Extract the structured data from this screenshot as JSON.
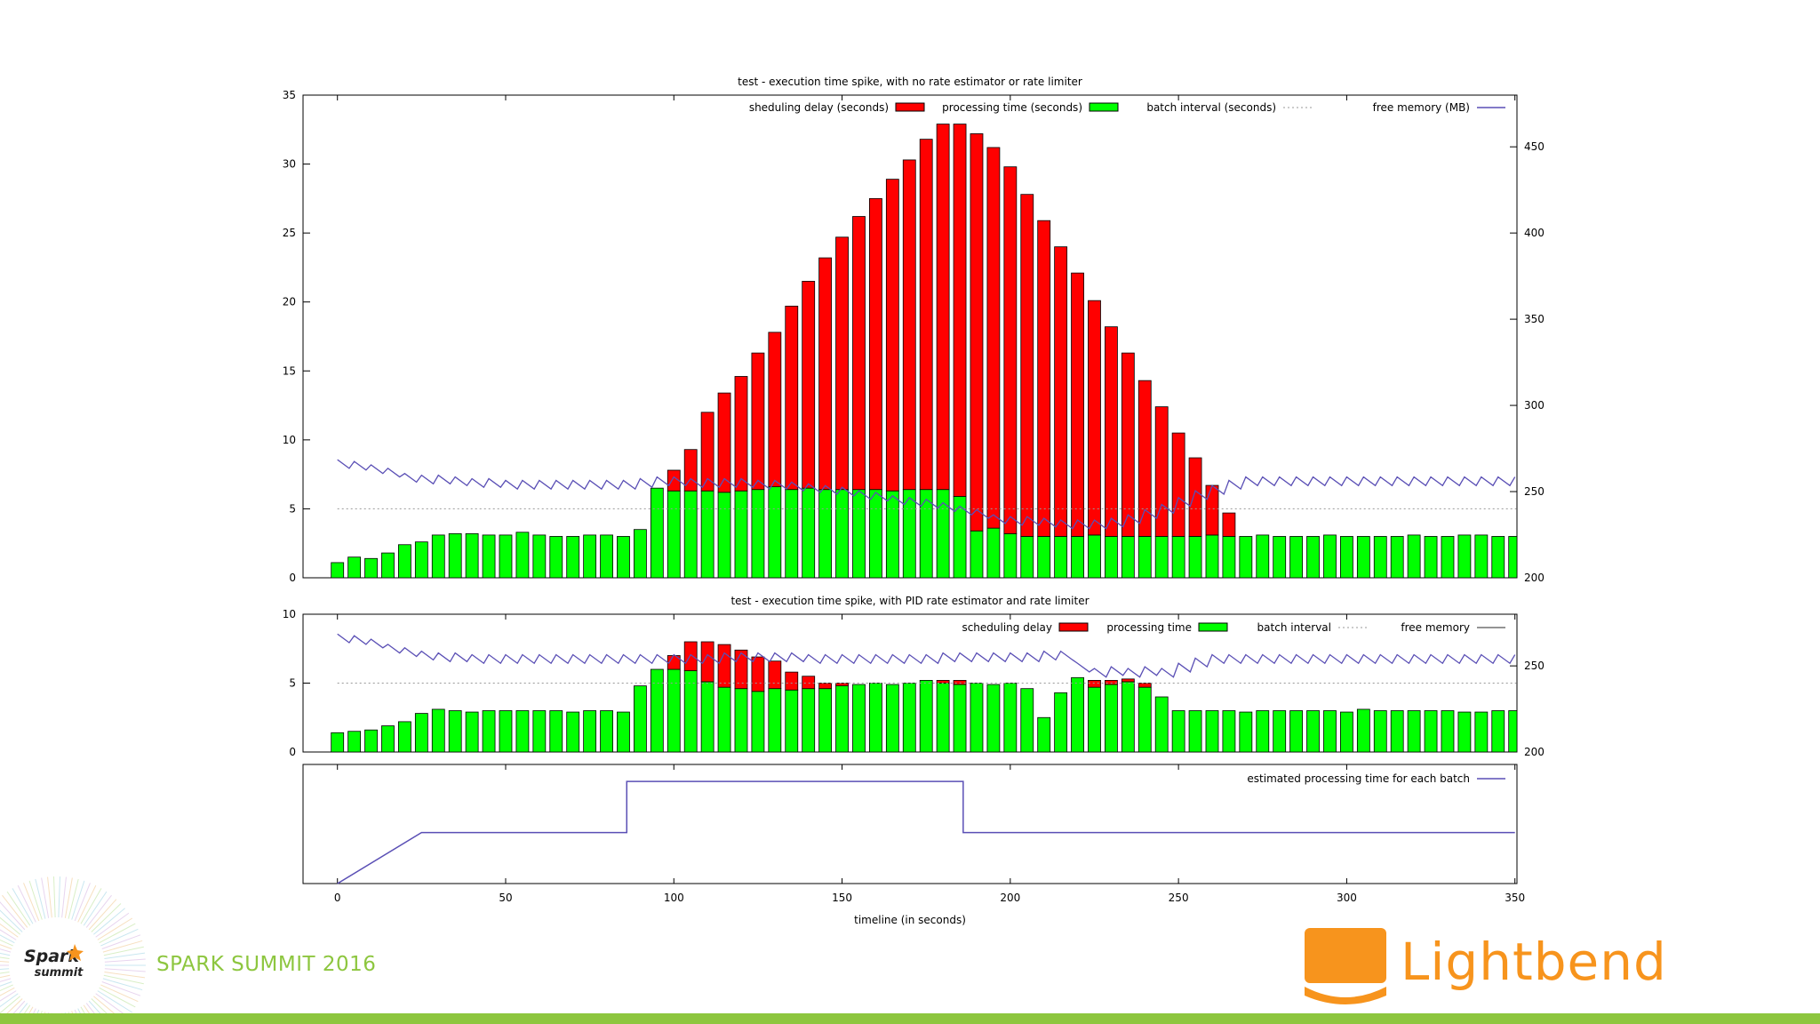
{
  "colors": {
    "delay": "#ff0000",
    "processing": "#00ff00",
    "memory_line": "#5a4fb5",
    "batch_line": "#9a9a9a",
    "spark_event": "#8dc63f",
    "lightbend": "#f7941d",
    "footer": "#8dc63f"
  },
  "branding": {
    "event_text": "SPARK SUMMIT 2016",
    "spark_logo_top": "Spark",
    "spark_logo_bottom": "summit",
    "lightbend_text": "Lightbend",
    "icon": "lightbend-bowl-icon"
  },
  "chart_data": [
    {
      "type": "bar",
      "title": "test - execution time spike, with no rate estimator or rate limiter",
      "stacked": true,
      "xlim": [
        -10,
        350
      ],
      "ylim": [
        0,
        35
      ],
      "y_ticks": [
        0,
        5,
        10,
        15,
        20,
        25,
        30,
        35
      ],
      "y2lim": [
        200,
        480
      ],
      "y2_ticks": [
        200,
        250,
        300,
        350,
        400,
        450
      ],
      "legend": {
        "delay": "sheduling delay (seconds)",
        "processing": "processing time (seconds)",
        "batch": "batch interval (seconds)",
        "memory": "free memory (MB)"
      },
      "legend_position": "top",
      "batch_interval": 5,
      "x": [
        0,
        5,
        10,
        15,
        20,
        25,
        30,
        35,
        40,
        45,
        50,
        55,
        60,
        65,
        70,
        75,
        80,
        85,
        90,
        95,
        100,
        105,
        110,
        115,
        120,
        125,
        130,
        135,
        140,
        145,
        150,
        155,
        160,
        165,
        170,
        175,
        180,
        185,
        190,
        195,
        200,
        205,
        210,
        215,
        220,
        225,
        230,
        235,
        240,
        245,
        250,
        255,
        260,
        265,
        270,
        275,
        280,
        285,
        290,
        295,
        300,
        305,
        310,
        315,
        320,
        325,
        330,
        335,
        340,
        345,
        350
      ],
      "processing": [
        1.1,
        1.5,
        1.4,
        1.8,
        2.4,
        2.6,
        3.1,
        3.2,
        3.2,
        3.1,
        3.1,
        3.3,
        3.1,
        3.0,
        3.0,
        3.1,
        3.1,
        3.0,
        3.5,
        6.5,
        6.3,
        6.3,
        6.3,
        6.2,
        6.3,
        6.4,
        6.6,
        6.4,
        6.5,
        6.4,
        6.4,
        6.4,
        6.4,
        6.3,
        6.4,
        6.4,
        6.4,
        5.9,
        3.4,
        3.6,
        3.2,
        3.0,
        3.0,
        3.0,
        3.0,
        3.1,
        3.0,
        3.0,
        3.0,
        3.0,
        3.0,
        3.0,
        3.1,
        3.0,
        3.0,
        3.1,
        3.0,
        3.0,
        3.0,
        3.1,
        3.0,
        3.0,
        3.0,
        3.0,
        3.1,
        3.0,
        3.0,
        3.1,
        3.1,
        3.0,
        3.0
      ],
      "delay": [
        0,
        0,
        0,
        0,
        0,
        0,
        0,
        0,
        0,
        0,
        0,
        0,
        0,
        0,
        0,
        0,
        0,
        0,
        0,
        0,
        1.5,
        3.0,
        5.7,
        7.2,
        8.3,
        9.9,
        11.2,
        13.3,
        15.0,
        16.8,
        18.3,
        19.8,
        21.1,
        22.6,
        23.9,
        25.4,
        26.5,
        27.0,
        28.8,
        27.6,
        26.6,
        24.8,
        22.9,
        21.0,
        19.1,
        17.0,
        15.2,
        13.3,
        11.3,
        9.4,
        7.5,
        5.7,
        3.6,
        1.7,
        0,
        0,
        0,
        0,
        0,
        0,
        0,
        0,
        0,
        0,
        0,
        0,
        0,
        0,
        0,
        0,
        0
      ],
      "memory": {
        "x": [
          0,
          5,
          10,
          15,
          20,
          25,
          30,
          35,
          40,
          45,
          50,
          55,
          60,
          65,
          70,
          75,
          80,
          85,
          90,
          95,
          100,
          105,
          110,
          115,
          120,
          125,
          130,
          135,
          140,
          145,
          150,
          155,
          160,
          165,
          170,
          175,
          180,
          185,
          190,
          195,
          200,
          205,
          210,
          215,
          220,
          225,
          230,
          235,
          240,
          245,
          250,
          255,
          260,
          265,
          270,
          275,
          280,
          285,
          290,
          295,
          300,
          305,
          310,
          315,
          320,
          325,
          330,
          335,
          340,
          345,
          350
        ],
        "y": [
          266,
          265,
          263,
          261,
          258,
          257,
          257,
          256,
          255,
          255,
          254,
          254,
          254,
          254,
          254,
          254,
          254,
          254,
          255,
          256,
          256,
          255,
          255,
          255,
          255,
          254,
          254,
          253,
          252,
          251,
          250,
          248,
          247,
          245,
          244,
          243,
          241,
          239,
          237,
          234,
          233,
          233,
          232,
          231,
          231,
          231,
          232,
          234,
          237,
          240,
          244,
          248,
          251,
          254,
          256,
          256,
          256,
          256,
          256,
          256,
          256,
          256,
          256,
          256,
          256,
          256,
          256,
          256,
          256,
          256,
          256
        ]
      }
    },
    {
      "type": "bar",
      "title": "test - execution time spike, with PID rate estimator and rate limiter",
      "stacked": true,
      "xlim": [
        -10,
        350
      ],
      "ylim": [
        0,
        10
      ],
      "y_ticks": [
        0,
        5,
        10
      ],
      "y2lim": [
        200,
        280
      ],
      "y2_ticks": [
        200,
        250
      ],
      "legend": {
        "delay": "scheduling delay",
        "processing": "processing time",
        "batch": "batch interval",
        "memory": "free memory"
      },
      "legend_position": "top",
      "batch_interval": 5,
      "x": [
        0,
        5,
        10,
        15,
        20,
        25,
        30,
        35,
        40,
        45,
        50,
        55,
        60,
        65,
        70,
        75,
        80,
        85,
        90,
        95,
        100,
        105,
        110,
        115,
        120,
        125,
        130,
        135,
        140,
        145,
        150,
        155,
        160,
        165,
        170,
        175,
        180,
        185,
        190,
        195,
        200,
        205,
        210,
        215,
        220,
        225,
        230,
        235,
        240,
        245,
        250,
        255,
        260,
        265,
        270,
        275,
        280,
        285,
        290,
        295,
        300,
        305,
        310,
        315,
        320,
        325,
        330,
        335,
        340,
        345,
        350
      ],
      "processing": [
        1.4,
        1.5,
        1.6,
        1.9,
        2.2,
        2.8,
        3.1,
        3.0,
        2.9,
        3.0,
        3.0,
        3.0,
        3.0,
        3.0,
        2.9,
        3.0,
        3.0,
        2.9,
        4.8,
        6.0,
        6.0,
        5.9,
        5.1,
        4.7,
        4.6,
        4.4,
        4.6,
        4.5,
        4.6,
        4.6,
        4.8,
        4.9,
        5.0,
        4.9,
        5.0,
        5.2,
        5.0,
        4.9,
        5.0,
        4.9,
        5.0,
        4.6,
        2.5,
        4.3,
        5.4,
        4.7,
        4.9,
        5.1,
        4.7,
        4.0,
        3.0,
        3.0,
        3.0,
        3.0,
        2.9,
        3.0,
        3.0,
        3.0,
        3.0,
        3.0,
        2.9,
        3.1,
        3.0,
        3.0,
        3.0,
        3.0,
        3.0,
        2.9,
        2.9,
        3.0,
        3.0
      ],
      "delay": [
        0,
        0,
        0,
        0,
        0,
        0,
        0,
        0,
        0,
        0,
        0,
        0,
        0,
        0,
        0,
        0,
        0,
        0,
        0,
        0,
        1.0,
        2.1,
        2.9,
        3.1,
        2.8,
        2.5,
        2.0,
        1.3,
        0.9,
        0.4,
        0.2,
        0,
        0,
        0,
        0,
        0,
        0.2,
        0.3,
        0,
        0,
        0,
        0,
        0,
        0,
        0,
        0.5,
        0.3,
        0.2,
        0.3,
        0,
        0,
        0,
        0,
        0,
        0,
        0,
        0,
        0,
        0,
        0,
        0,
        0,
        0,
        0,
        0,
        0,
        0,
        0,
        0,
        0,
        0
      ],
      "memory": {
        "x": [
          0,
          5,
          10,
          15,
          20,
          25,
          30,
          35,
          40,
          45,
          50,
          55,
          60,
          65,
          70,
          75,
          80,
          85,
          90,
          95,
          100,
          105,
          110,
          115,
          120,
          125,
          130,
          135,
          140,
          145,
          150,
          155,
          160,
          165,
          170,
          175,
          180,
          185,
          190,
          195,
          200,
          205,
          210,
          215,
          220,
          225,
          230,
          235,
          240,
          245,
          250,
          255,
          260,
          265,
          270,
          275,
          280,
          285,
          290,
          295,
          300,
          305,
          310,
          315,
          320,
          325,
          330,
          335,
          340,
          345,
          350
        ],
        "y": [
          266,
          265,
          263,
          260,
          258,
          256,
          255,
          255,
          254,
          254,
          254,
          254,
          254,
          254,
          254,
          254,
          254,
          254,
          254,
          254,
          254,
          254,
          254,
          255,
          255,
          255,
          255,
          255,
          254,
          254,
          254,
          254,
          254,
          254,
          254,
          254,
          255,
          255,
          255,
          255,
          255,
          255,
          256,
          256,
          249,
          246,
          247,
          246,
          247,
          246,
          249,
          252,
          254,
          254,
          254,
          254,
          254,
          254,
          254,
          254,
          254,
          254,
          254,
          254,
          254,
          254,
          254,
          254,
          254,
          254,
          254
        ]
      }
    },
    {
      "type": "line",
      "legend": "estimated processing time for each batch",
      "legend_position": "top-right",
      "xlabel": "timeline (in seconds)",
      "x_ticks": [
        0,
        50,
        100,
        150,
        200,
        250,
        300,
        350
      ],
      "xlim": [
        -10,
        350
      ],
      "ylim": [
        0,
        7
      ],
      "x": [
        0,
        25,
        86,
        86,
        186,
        186,
        350
      ],
      "y": [
        0,
        3,
        3,
        6,
        6,
        3,
        3
      ]
    }
  ]
}
